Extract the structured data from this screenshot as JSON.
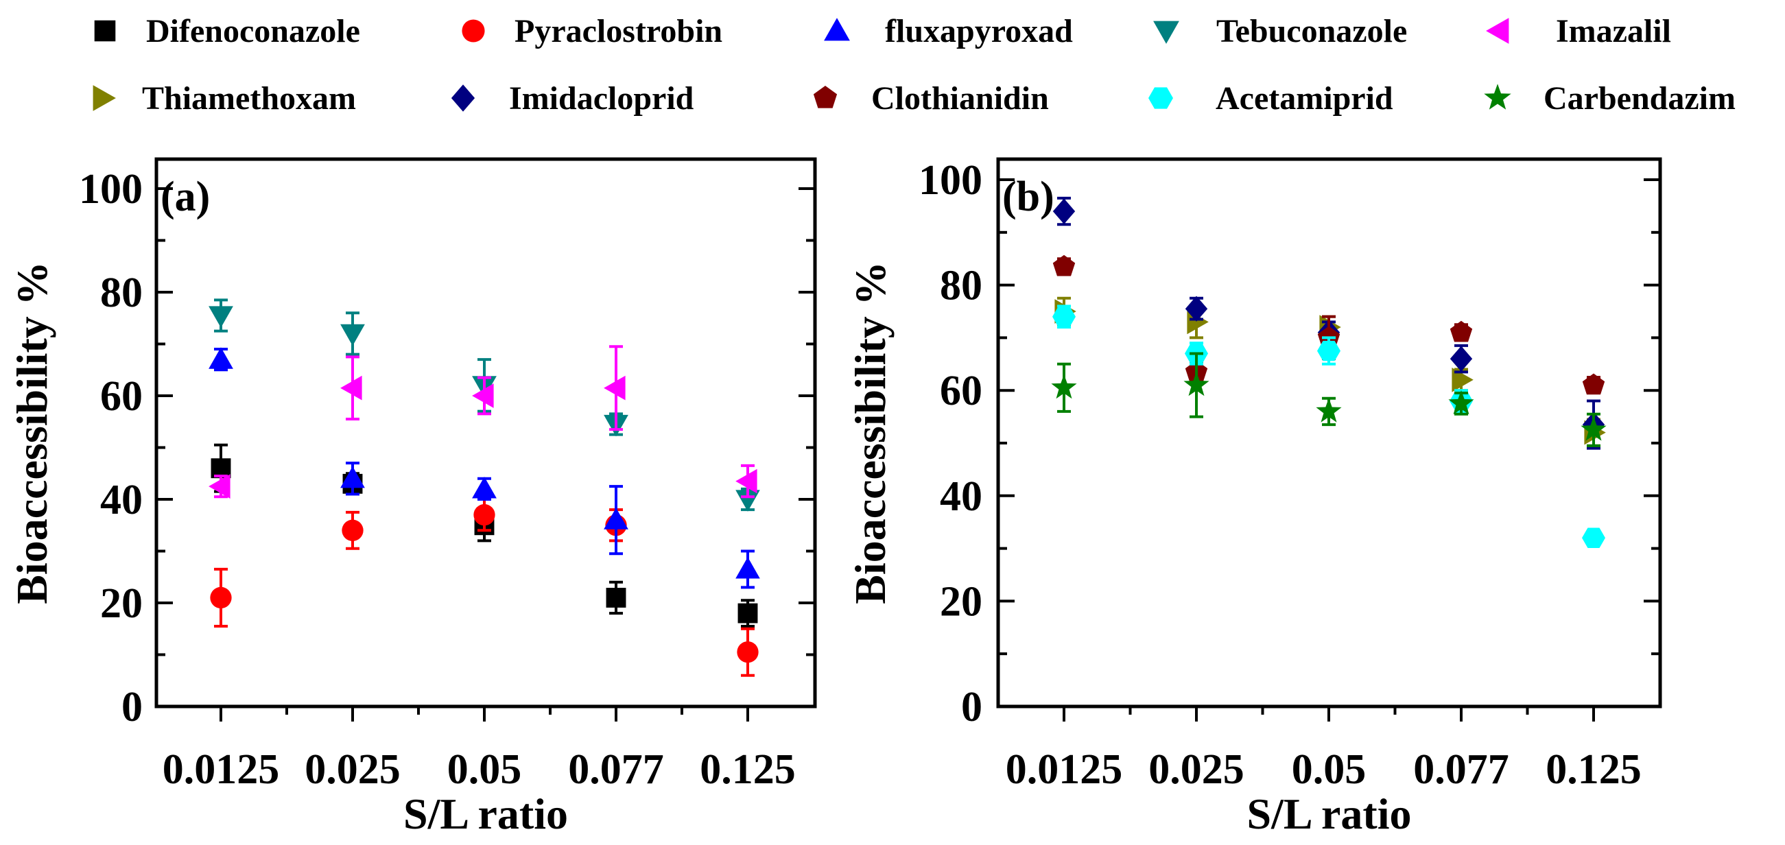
{
  "chart_data": {
    "type": "scatter",
    "x_title": "S/L ratio",
    "y_title": "Bioaccessibility %",
    "categories": [
      "0.0125",
      "0.025",
      "0.05",
      "0.077",
      "0.125"
    ],
    "yticks": [
      "0",
      "20",
      "40",
      "60",
      "80",
      "100"
    ],
    "ylim": [
      0,
      100
    ],
    "legend": [
      {
        "name": "Difenoconazole",
        "color": "#000000",
        "marker": "square"
      },
      {
        "name": "Pyraclostrobin",
        "color": "#ff0000",
        "marker": "circle"
      },
      {
        "name": "fluxapyroxad",
        "color": "#0000ff",
        "marker": "triangle-up"
      },
      {
        "name": "Tebuconazole",
        "color": "#008080",
        "marker": "triangle-down"
      },
      {
        "name": "Imazalil",
        "color": "#ff00ff",
        "marker": "triangle-left"
      },
      {
        "name": "Thiamethoxam",
        "color": "#808000",
        "marker": "triangle-right"
      },
      {
        "name": "Imidacloprid",
        "color": "#000080",
        "marker": "diamond"
      },
      {
        "name": "Clothianidin",
        "color": "#800000",
        "marker": "pentagon"
      },
      {
        "name": "Acetamiprid",
        "color": "#00ffff",
        "marker": "hexagon"
      },
      {
        "name": "Carbendazim",
        "color": "#008000",
        "marker": "star"
      }
    ],
    "panels": [
      {
        "label": "(a)",
        "series": [
          {
            "name": "Difenoconazole",
            "values": [
              46,
              43,
              35,
              21,
              18
            ],
            "errors": [
              4.5,
              2,
              3,
              3,
              2.5
            ]
          },
          {
            "name": "Pyraclostrobin",
            "values": [
              21,
              34,
              37,
              35,
              10.5
            ],
            "errors": [
              5.5,
              3.5,
              3,
              3,
              4.5
            ]
          },
          {
            "name": "fluxapyroxad",
            "values": [
              67,
              44,
              42,
              36,
              26.5
            ],
            "errors": [
              2,
              3,
              2,
              6.5,
              3.5
            ]
          },
          {
            "name": "Tebuconazole",
            "values": [
              75.5,
              72,
              62,
              54.5,
              40
            ],
            "errors": [
              3,
              4,
              5,
              2,
              2
            ]
          },
          {
            "name": "Imazalil",
            "values": [
              42.5,
              61.5,
              60,
              61.5,
              43.5
            ],
            "errors": [
              2,
              6,
              3.5,
              8,
              3
            ]
          }
        ]
      },
      {
        "label": "(b)",
        "series": [
          {
            "name": "Thiamethoxam",
            "values": [
              75,
              73,
              72,
              62,
              52
            ],
            "errors": [
              2.5,
              3,
              2,
              2,
              2.5
            ]
          },
          {
            "name": "Imidacloprid",
            "values": [
              94,
              75.5,
              71,
              66,
              53.5
            ],
            "errors": [
              2.5,
              2,
              2,
              2.5,
              4.5
            ]
          },
          {
            "name": "Clothianidin",
            "values": [
              83.5,
              63.5,
              70,
              71,
              61
            ],
            "errors": [
              1.5,
              2,
              4,
              1.5,
              1.5
            ]
          },
          {
            "name": "Acetamiprid",
            "values": [
              74,
              67,
              67.5,
              58,
              32
            ],
            "errors": [
              2,
              2,
              2.5,
              2,
              1
            ]
          },
          {
            "name": "Carbendazim",
            "values": [
              60.5,
              61,
              56,
              57.5,
              52.5
            ],
            "errors": [
              4.5,
              6,
              2.5,
              2,
              3
            ]
          }
        ]
      }
    ]
  }
}
